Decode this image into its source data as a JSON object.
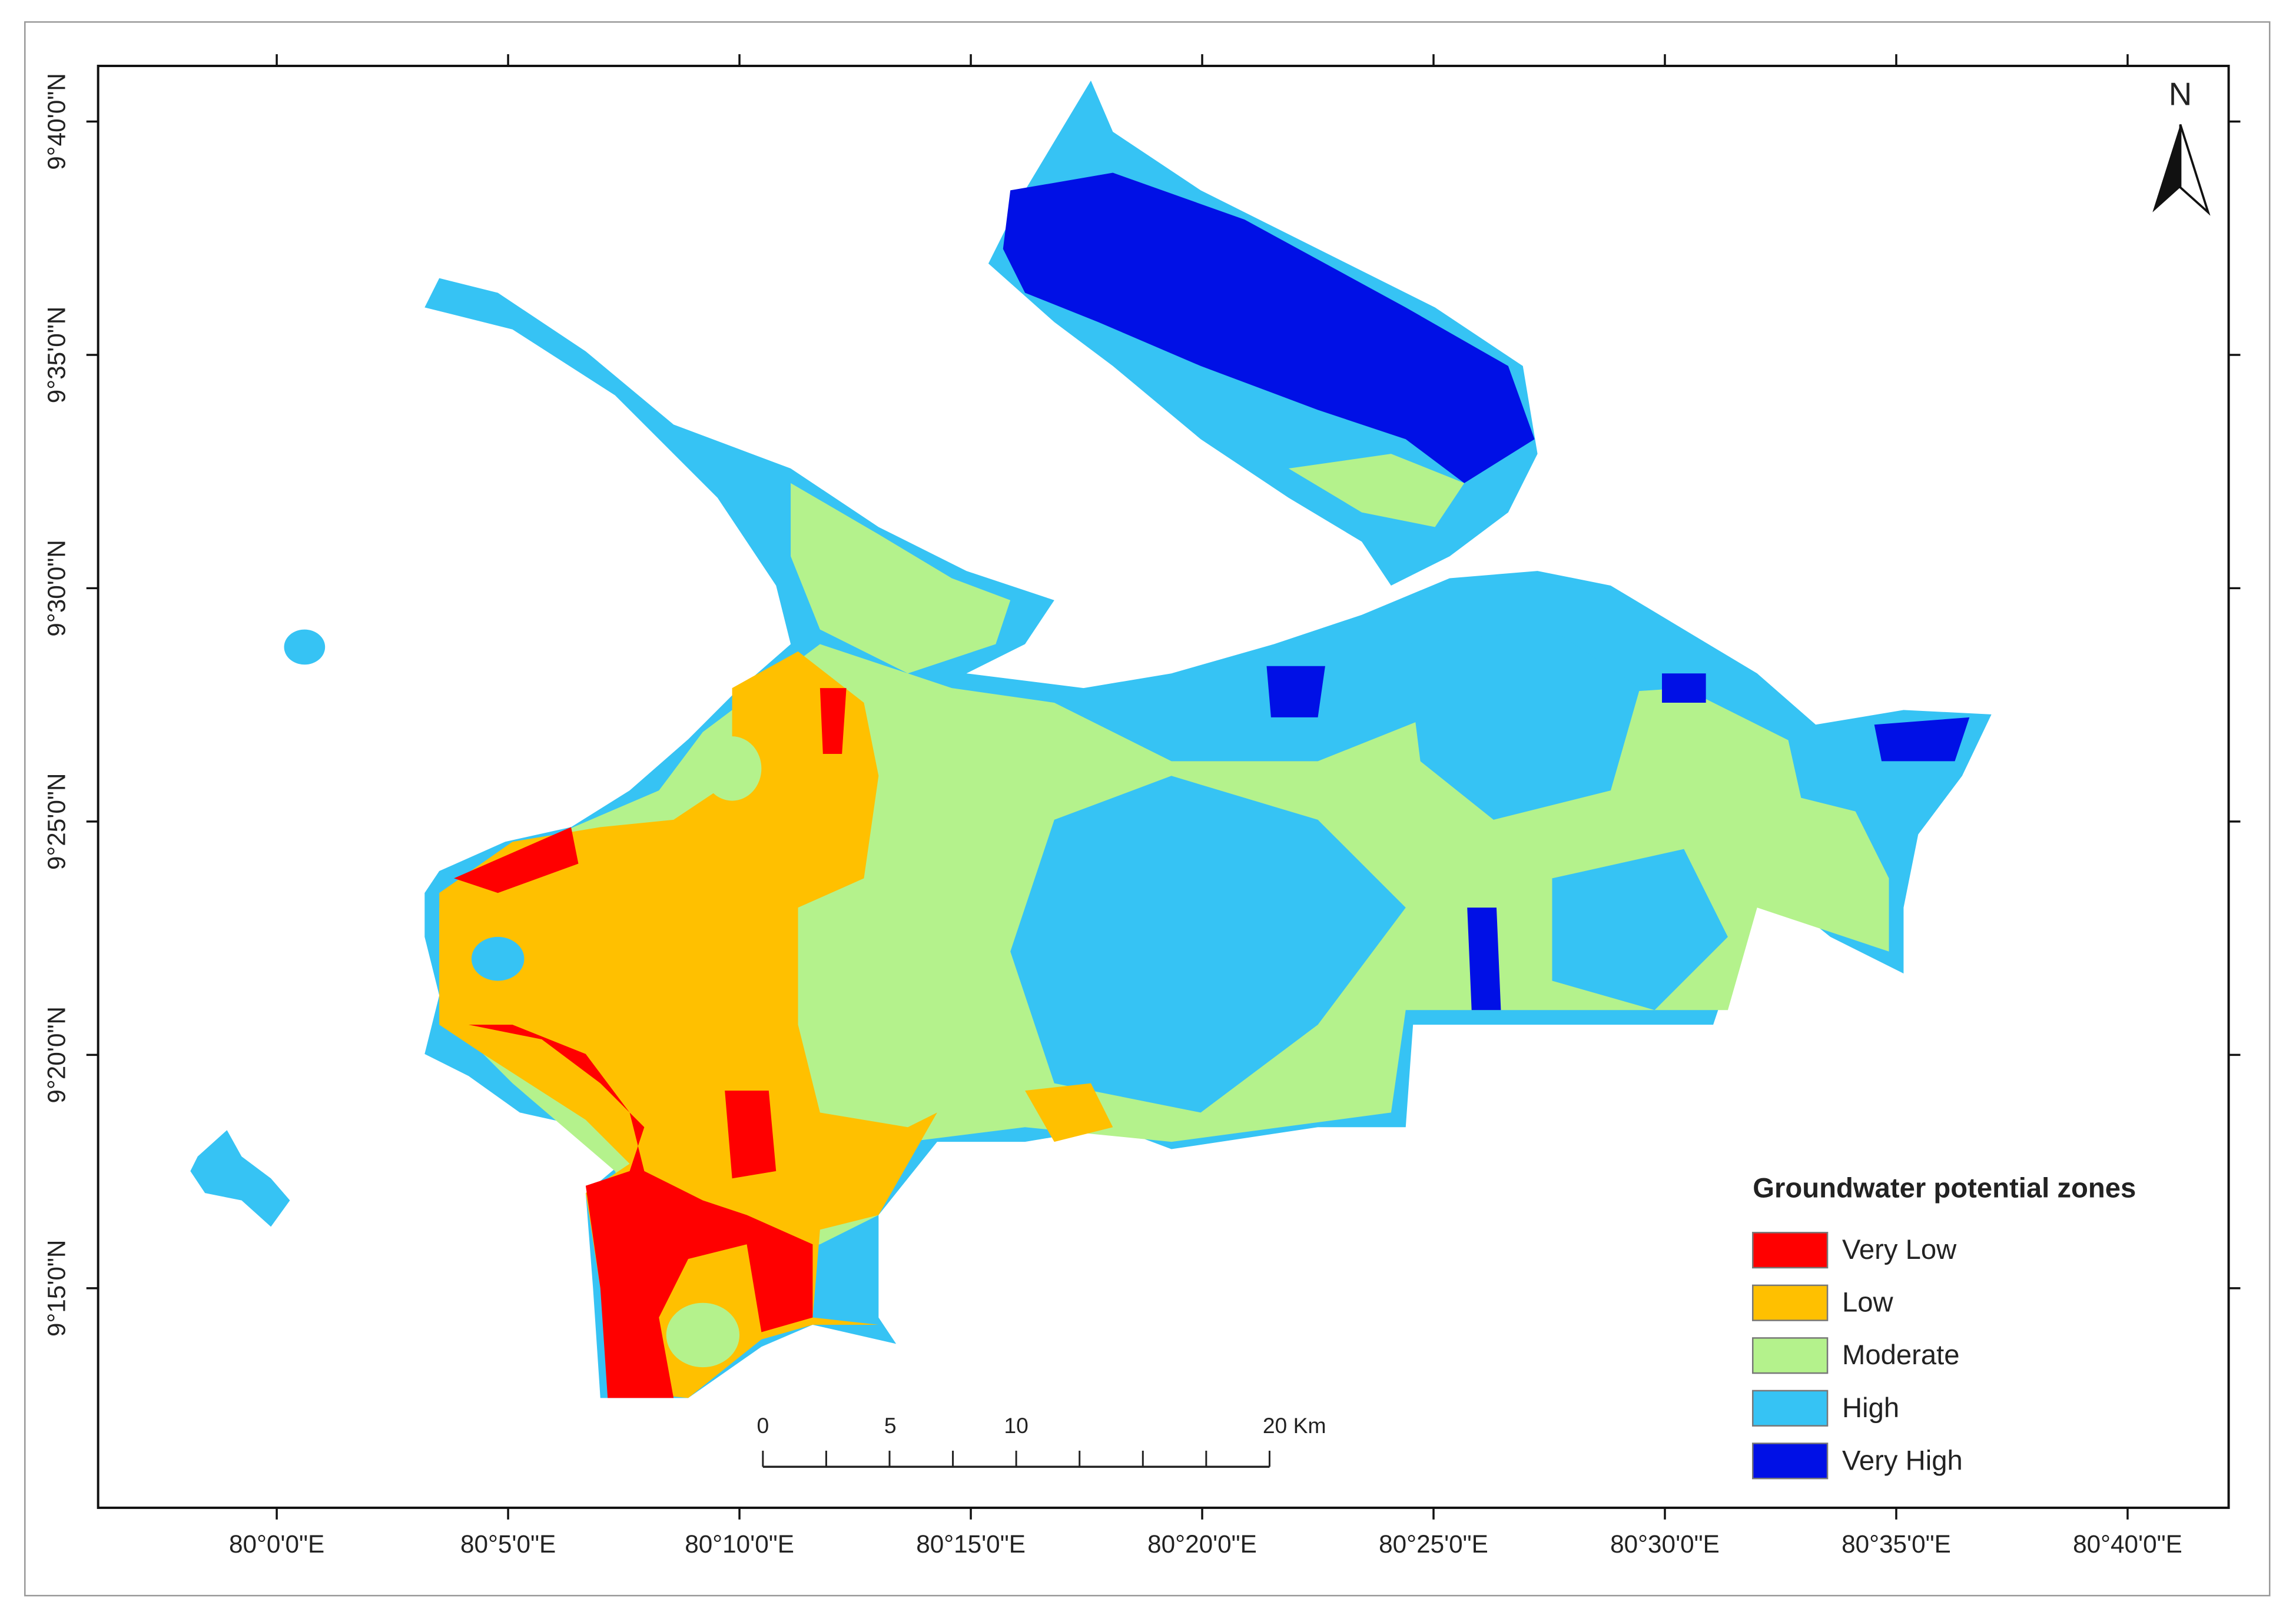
{
  "map": {
    "north_label": "N",
    "longitude_labels": [
      "80°0'0\"E",
      "80°5'0\"E",
      "80°10'0\"E",
      "80°15'0\"E",
      "80°20'0\"E",
      "80°25'0\"E",
      "80°30'0\"E",
      "80°35'0\"E",
      "80°40'0\"E"
    ],
    "latitude_labels": [
      "9°40'0\"N",
      "9°35'0\"N",
      "9°30'0\"N",
      "9°25'0\"N",
      "9°20'0\"N",
      "9°15'0\"N"
    ],
    "scale_bar": [
      "0",
      "5",
      "10",
      "20 Km"
    ],
    "legend": {
      "title": "Groundwater potential zones",
      "items": [
        {
          "label": "Very Low",
          "color": "#ff0000"
        },
        {
          "label": "Low",
          "color": "#ffc000"
        },
        {
          "label": "Moderate",
          "color": "#b4f28c"
        },
        {
          "label": "High",
          "color": "#36c3f4"
        },
        {
          "label": "Very High",
          "color": "#0010e6"
        }
      ]
    }
  }
}
